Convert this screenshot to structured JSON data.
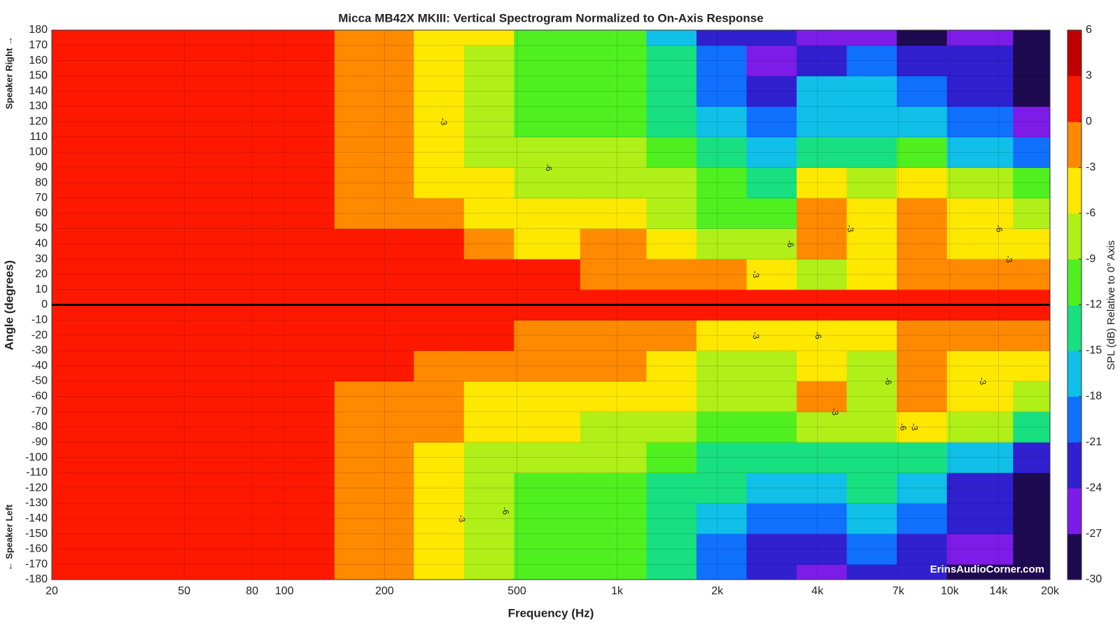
{
  "chart_data": {
    "type": "contour",
    "title": "Micca MB42X MKIII: Vertical Spectrogram Normalized to On-Axis Response",
    "x_label": "Frequency (Hz)",
    "y_label": "Angle (degrees)",
    "y_label_top": "Speaker Right →",
    "y_label_bottom": "← Speaker Left",
    "colorbar_label": "SPL (dB) Relative to 0° Axis",
    "watermark": "ErinsAudioCorner.com",
    "xscale": "log",
    "xlim": [
      20,
      20000
    ],
    "xticks": [
      20,
      50,
      80,
      100,
      200,
      500,
      {
        "value": 1000,
        "label": "1k"
      },
      {
        "value": 2000,
        "label": "2k"
      },
      {
        "value": 4000,
        "label": "4k"
      },
      {
        "value": 7000,
        "label": "7k"
      },
      {
        "value": 10000,
        "label": "10k"
      },
      {
        "value": 14000,
        "label": "14k"
      },
      {
        "value": 20000,
        "label": "20k"
      }
    ],
    "ylim": [
      -180,
      180
    ],
    "yticks": [
      -180,
      -170,
      -160,
      -150,
      -140,
      -130,
      -120,
      -110,
      -100,
      -90,
      -80,
      -70,
      -60,
      -50,
      -40,
      -30,
      -20,
      -10,
      0,
      10,
      20,
      30,
      40,
      50,
      60,
      70,
      80,
      90,
      100,
      110,
      120,
      130,
      140,
      150,
      160,
      170,
      180
    ],
    "grid": true,
    "reference_line": 0,
    "x": [
      20,
      100,
      200,
      300,
      400,
      600,
      1000,
      1500,
      2000,
      3000,
      4000,
      6000,
      8000,
      12000,
      20000
    ],
    "y": [
      -180,
      -160,
      -140,
      -120,
      -100,
      -80,
      -60,
      -40,
      -20,
      0,
      20,
      40,
      60,
      80,
      100,
      120,
      140,
      160,
      180
    ],
    "z": [
      [
        0,
        0,
        -2,
        -4,
        -7,
        -10,
        -12,
        -15,
        -19,
        -24,
        -25,
        -22,
        -24,
        -28,
        -30
      ],
      [
        0,
        0,
        -2,
        -4,
        -7,
        -10,
        -12,
        -15,
        -20,
        -23,
        -24,
        -20,
        -23,
        -26,
        -30
      ],
      [
        0,
        0,
        -2,
        -4,
        -7,
        -10,
        -11,
        -14,
        -18,
        -21,
        -19,
        -17,
        -20,
        -24,
        -30
      ],
      [
        0,
        0,
        -2,
        -4,
        -7,
        -10,
        -11,
        -13,
        -15,
        -18,
        -16,
        -15,
        -17,
        -22,
        -28
      ],
      [
        0,
        0,
        -2,
        -4,
        -7,
        -9,
        -8,
        -11,
        -13,
        -14,
        -14,
        -13,
        -14,
        -18,
        -22
      ],
      [
        0,
        0,
        -1,
        -3,
        -6,
        -6,
        -7,
        -9,
        -11,
        -10,
        -7,
        -8,
        -6,
        -9,
        -13
      ],
      [
        0,
        0,
        -1,
        -3,
        -4,
        -4,
        -5,
        -6,
        -8,
        -7,
        -2,
        -7,
        -3,
        -5,
        -8
      ],
      [
        0,
        0,
        0,
        -1,
        -2,
        -3,
        -3,
        -5,
        -7,
        -9,
        -6,
        -8,
        -3,
        -5,
        -5
      ],
      [
        0,
        0,
        0,
        0,
        0,
        -1,
        -2,
        -3,
        -4,
        -5,
        -6,
        -6,
        -2,
        -2,
        -2
      ],
      [
        0,
        0,
        0,
        0,
        0,
        0,
        0,
        0,
        0,
        0,
        0,
        0,
        0,
        0,
        0
      ],
      [
        0,
        0,
        0,
        0,
        0,
        0,
        -1,
        -2,
        -3,
        -5,
        -8,
        -6,
        -2,
        -2,
        -2
      ],
      [
        0,
        0,
        0,
        0,
        -2,
        -4,
        -3,
        -5,
        -8,
        -9,
        -2,
        -4,
        -2,
        -5,
        -5
      ],
      [
        0,
        0,
        -2,
        -3,
        -5,
        -6,
        -5,
        -7,
        -10,
        -10,
        -2,
        -5,
        -3,
        -6,
        -8
      ],
      [
        0,
        0,
        -2,
        -4,
        -6,
        -7,
        -7,
        -9,
        -11,
        -13,
        -6,
        -8,
        -5,
        -9,
        -12
      ],
      [
        0,
        0,
        -2,
        -4,
        -7,
        -9,
        -8,
        -11,
        -13,
        -16,
        -14,
        -13,
        -12,
        -16,
        -20
      ],
      [
        0,
        0,
        -2,
        -4,
        -7,
        -10,
        -10,
        -13,
        -16,
        -20,
        -17,
        -16,
        -17,
        -20,
        -26
      ],
      [
        0,
        0,
        -2,
        -4,
        -7,
        -10,
        -11,
        -14,
        -19,
        -23,
        -18,
        -17,
        -19,
        -22,
        -29
      ],
      [
        0,
        0,
        -2,
        -4,
        -7,
        -10,
        -12,
        -15,
        -20,
        -25,
        -22,
        -20,
        -22,
        -24,
        -30
      ],
      [
        0,
        0,
        -1,
        -4,
        -6,
        -10,
        -12,
        -16,
        -22,
        -24,
        -25,
        -25,
        -28,
        -26,
        -30
      ]
    ],
    "colorbar": {
      "lim": [
        -30,
        6
      ],
      "ticks": [
        -30,
        -27,
        -24,
        -21,
        -18,
        -15,
        -12,
        -9,
        -6,
        -3,
        0,
        3,
        6
      ],
      "colors": [
        "#1e0a50",
        "#7d1ce8",
        "#3020d0",
        "#1070ff",
        "#10c0e8",
        "#18e080",
        "#50f020",
        "#b0f018",
        "#ffe800",
        "#ff8a00",
        "#ff1800",
        "#c00000"
      ]
    },
    "contour_labels": [
      {
        "x": 300,
        "y": 120,
        "value": -3
      },
      {
        "x": 620,
        "y": 90,
        "value": -6
      },
      {
        "x": 5000,
        "y": 50,
        "value": -3
      },
      {
        "x": 3300,
        "y": 40,
        "value": -6
      },
      {
        "x": 2600,
        "y": 20,
        "value": -3
      },
      {
        "x": 14000,
        "y": 50,
        "value": -6
      },
      {
        "x": 15000,
        "y": 30,
        "value": -3
      },
      {
        "x": 2600,
        "y": -20,
        "value": -3
      },
      {
        "x": 4000,
        "y": -20,
        "value": -6
      },
      {
        "x": 6500,
        "y": -50,
        "value": -6
      },
      {
        "x": 12500,
        "y": -50,
        "value": -3
      },
      {
        "x": 4500,
        "y": -70,
        "value": -3
      },
      {
        "x": 7800,
        "y": -80,
        "value": -3
      },
      {
        "x": 7200,
        "y": -80,
        "value": -6
      },
      {
        "x": 460,
        "y": -135,
        "value": -6
      },
      {
        "x": 340,
        "y": -140,
        "value": -3
      }
    ]
  }
}
